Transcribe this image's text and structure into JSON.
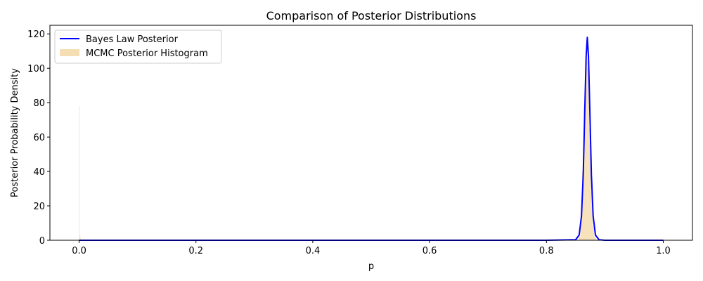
{
  "chart_data": {
    "type": "line",
    "title": "Comparison of Posterior Distributions",
    "xlabel": "p",
    "ylabel": "Posterior Probability Density",
    "xlim": [
      -0.05,
      1.05
    ],
    "ylim": [
      0,
      125
    ],
    "x_ticks": [
      0.0,
      0.2,
      0.4,
      0.6,
      0.8,
      1.0
    ],
    "x_tick_labels": [
      "0.0",
      "0.2",
      "0.4",
      "0.6",
      "0.8",
      "1.0"
    ],
    "y_ticks": [
      0,
      20,
      40,
      60,
      80,
      100,
      120
    ],
    "y_tick_labels": [
      "0",
      "20",
      "40",
      "60",
      "80",
      "100",
      "120"
    ],
    "grid": false,
    "legend_position": "top-left",
    "series": [
      {
        "name": "Bayes Law Posterior",
        "kind": "line",
        "color": "#0000ff",
        "x": [
          0.0,
          0.2,
          0.4,
          0.6,
          0.8,
          0.85,
          0.856,
          0.86,
          0.863,
          0.866,
          0.868,
          0.87,
          0.872,
          0.874,
          0.877,
          0.88,
          0.884,
          0.89,
          0.9,
          1.0
        ],
        "y": [
          0,
          0,
          0,
          0,
          0,
          0.3,
          3,
          14,
          38,
          80,
          107,
          118,
          107,
          80,
          38,
          14,
          3,
          0.3,
          0,
          0
        ]
      },
      {
        "name": "MCMC Posterior Histogram",
        "kind": "histogram",
        "color": "#f5deb3",
        "bars": [
          {
            "x0": 0.0,
            "x1": 0.001,
            "value": 78
          },
          {
            "x0": 0.001,
            "x1": 0.002,
            "value": 3
          },
          {
            "x0": 0.002,
            "x1": 0.003,
            "value": 1
          },
          {
            "x0": 0.855,
            "x1": 0.858,
            "value": 2
          },
          {
            "x0": 0.858,
            "x1": 0.861,
            "value": 12
          },
          {
            "x0": 0.861,
            "x1": 0.864,
            "value": 40
          },
          {
            "x0": 0.864,
            "x1": 0.867,
            "value": 78
          },
          {
            "x0": 0.867,
            "x1": 0.87,
            "value": 104
          },
          {
            "x0": 0.87,
            "x1": 0.873,
            "value": 100
          },
          {
            "x0": 0.873,
            "x1": 0.876,
            "value": 65
          },
          {
            "x0": 0.876,
            "x1": 0.879,
            "value": 28
          },
          {
            "x0": 0.879,
            "x1": 0.882,
            "value": 8
          },
          {
            "x0": 0.882,
            "x1": 0.885,
            "value": 2
          }
        ]
      }
    ]
  }
}
